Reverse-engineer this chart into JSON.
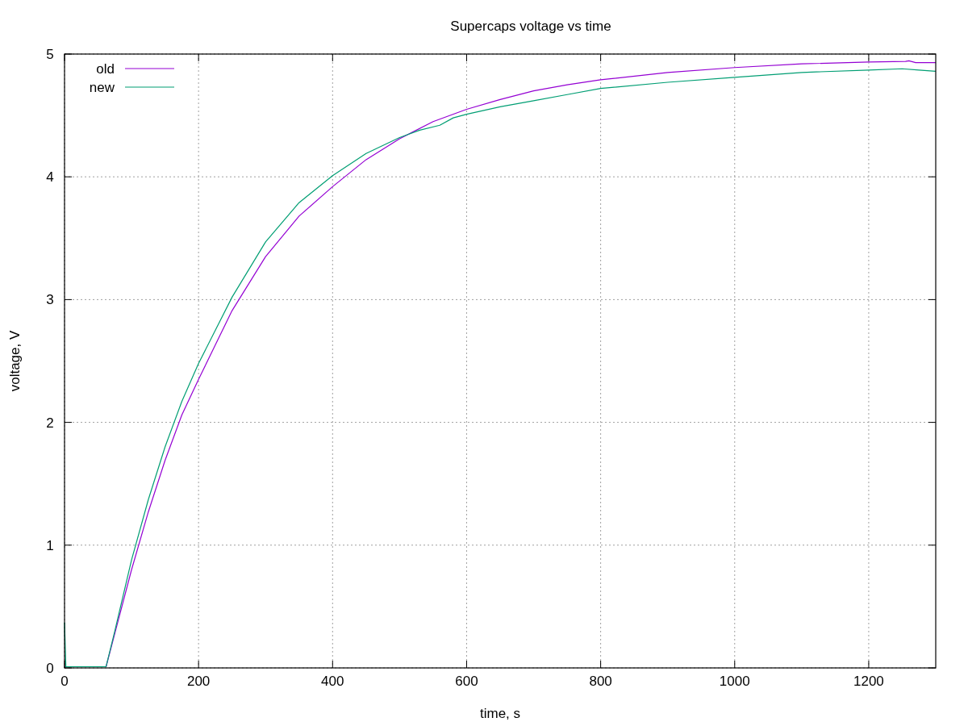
{
  "chart_data": {
    "type": "line",
    "title": "Supercaps voltage vs time",
    "xlabel": "time, s",
    "ylabel": "voltage, V",
    "xlim": [
      0,
      1300
    ],
    "xticks": [
      0,
      200,
      400,
      600,
      800,
      1000,
      1200
    ],
    "ylim": [
      0,
      5
    ],
    "yticks": [
      0,
      1,
      2,
      3,
      4,
      5
    ],
    "grid": true,
    "legend": "top left",
    "marker": "none",
    "line_style": "solid",
    "series": [
      {
        "name": "old",
        "color": "#9400d3",
        "x": [
          0,
          62,
          75,
          100,
          125,
          150,
          175,
          200,
          250,
          300,
          350,
          400,
          450,
          500,
          550,
          600,
          650,
          700,
          750,
          800,
          900,
          1000,
          1100,
          1200,
          1255,
          1260,
          1270,
          1300
        ],
        "values": [
          0.01,
          0.01,
          0.28,
          0.8,
          1.27,
          1.69,
          2.06,
          2.35,
          2.91,
          3.35,
          3.68,
          3.92,
          4.14,
          4.31,
          4.45,
          4.55,
          4.63,
          4.7,
          4.75,
          4.79,
          4.85,
          4.89,
          4.92,
          4.935,
          4.94,
          4.945,
          4.93,
          4.93
        ]
      },
      {
        "name": "new",
        "color": "#009e73",
        "x": [
          0,
          2,
          62,
          75,
          100,
          125,
          150,
          175,
          200,
          250,
          300,
          350,
          400,
          450,
          500,
          530,
          560,
          580,
          600,
          650,
          700,
          750,
          800,
          900,
          1000,
          1100,
          1200,
          1250,
          1275,
          1300
        ],
        "values": [
          0.37,
          0.01,
          0.01,
          0.3,
          0.88,
          1.37,
          1.8,
          2.17,
          2.48,
          3.02,
          3.47,
          3.79,
          4.01,
          4.19,
          4.32,
          4.38,
          4.42,
          4.48,
          4.51,
          4.57,
          4.62,
          4.67,
          4.72,
          4.77,
          4.81,
          4.85,
          4.87,
          4.88,
          4.87,
          4.86
        ]
      }
    ]
  }
}
